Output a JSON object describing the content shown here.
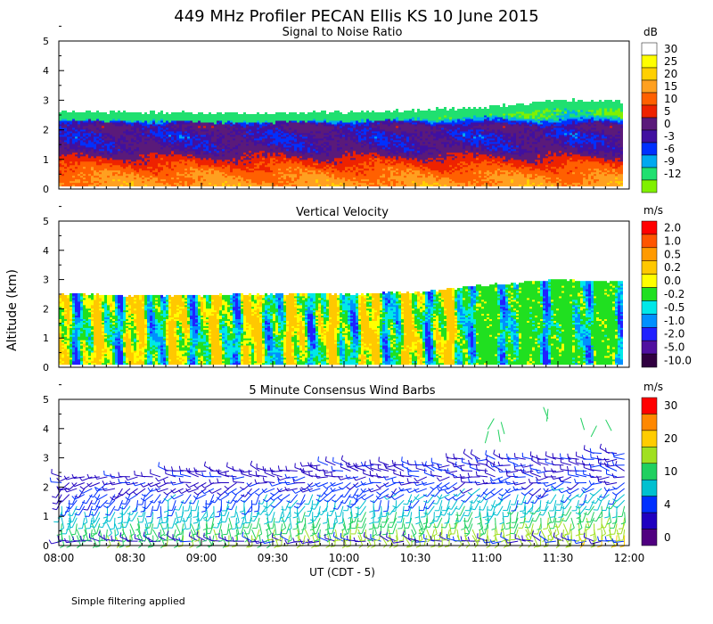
{
  "title": "449 MHz Profiler PECAN Ellis KS 10 June 2015",
  "footer_note": "Simple filtering applied",
  "x_axis": {
    "label": "UT  (CDT - 5)",
    "ticks": [
      "08:00",
      "08:30",
      "09:00",
      "09:30",
      "10:00",
      "10:30",
      "11:00",
      "11:30",
      "12:00"
    ],
    "range_hours": [
      8,
      12
    ]
  },
  "y_axis": {
    "label": "Altitude (km)",
    "ticks": [
      "0",
      "1",
      "2",
      "3",
      "4",
      "5"
    ],
    "range_km": [
      0,
      5
    ]
  },
  "chart_data": [
    {
      "type": "heatmap",
      "title": "Signal to Noise Ratio",
      "unit": "dB",
      "xlim": [
        8,
        12
      ],
      "ylim": [
        0,
        5
      ],
      "colorbar": [
        {
          "label": "30",
          "color": "#ffffff"
        },
        {
          "label": "25",
          "color": "#ffff00"
        },
        {
          "label": "20",
          "color": "#ffd000"
        },
        {
          "label": "15",
          "color": "#ffa020"
        },
        {
          "label": "10",
          "color": "#ff6000"
        },
        {
          "label": "5",
          "color": "#ee2200"
        },
        {
          "label": "0",
          "color": "#5a1a7a"
        },
        {
          "label": "-3",
          "color": "#4010a0"
        },
        {
          "label": "-6",
          "color": "#0030ff"
        },
        {
          "label": "-9",
          "color": "#00a8f0"
        },
        {
          "label": "-12",
          "color": "#20e070"
        }
      ],
      "lowest_color": "#80f000",
      "profile_km": [
        {
          "h": 0.0,
          "db": 18
        },
        {
          "h": 0.5,
          "db": 14
        },
        {
          "h": 0.9,
          "db": 8
        },
        {
          "h": 1.3,
          "db": 0
        },
        {
          "h": 1.8,
          "db": -2
        },
        {
          "h": 2.1,
          "db": 1
        },
        {
          "h": 2.35,
          "db": -8
        },
        {
          "h": 2.5,
          "db": -12
        }
      ],
      "echo_top_km": [
        [
          8.0,
          2.55
        ],
        [
          8.5,
          2.55
        ],
        [
          9.0,
          2.5
        ],
        [
          9.5,
          2.5
        ],
        [
          10.0,
          2.55
        ],
        [
          10.5,
          2.6
        ],
        [
          11.0,
          2.7
        ],
        [
          11.5,
          2.95
        ],
        [
          12.0,
          2.9
        ]
      ]
    },
    {
      "type": "heatmap",
      "title": "Vertical Velocity",
      "unit": "m/s",
      "xlim": [
        8,
        12
      ],
      "ylim": [
        0,
        5
      ],
      "colorbar": [
        {
          "label": "2.0",
          "color": "#ff0000"
        },
        {
          "label": "1.0",
          "color": "#ff5500"
        },
        {
          "label": "0.5",
          "color": "#ff9a00"
        },
        {
          "label": "0.2",
          "color": "#ffc800"
        },
        {
          "label": "0.0",
          "color": "#ffff00"
        },
        {
          "label": "-0.2",
          "color": "#20e020"
        },
        {
          "label": "-0.5",
          "color": "#00e8e8"
        },
        {
          "label": "-1.0",
          "color": "#0090ff"
        },
        {
          "label": "-2.0",
          "color": "#2020ff"
        },
        {
          "label": "-5.0",
          "color": "#5010a0"
        },
        {
          "label": "-10.0",
          "color": "#300040"
        }
      ],
      "echo_top_km": [
        [
          8.0,
          2.45
        ],
        [
          8.5,
          2.4
        ],
        [
          9.0,
          2.4
        ],
        [
          9.5,
          2.45
        ],
        [
          10.0,
          2.45
        ],
        [
          10.5,
          2.5
        ],
        [
          11.0,
          2.75
        ],
        [
          11.5,
          2.95
        ],
        [
          12.0,
          2.85
        ]
      ]
    },
    {
      "type": "scatter",
      "title": "5 Minute Consensus Wind Barbs",
      "unit": "m/s",
      "xlim": [
        8,
        12
      ],
      "ylim": [
        0,
        5
      ],
      "colorbar": [
        {
          "label": "30",
          "color": "#ff0000"
        },
        {
          "label": "",
          "color": "#ff8800"
        },
        {
          "label": "20",
          "color": "#ffcc00"
        },
        {
          "label": "",
          "color": "#a0e020"
        },
        {
          "label": "10",
          "color": "#20d060"
        },
        {
          "label": "",
          "color": "#00c0d0"
        },
        {
          "label": "4",
          "color": "#0030ff"
        },
        {
          "label": "",
          "color": "#2000c0"
        },
        {
          "label": "0",
          "color": "#500080"
        }
      ],
      "wind_profile": [
        {
          "h": 0.2,
          "speed": 14,
          "dir": 170
        },
        {
          "h": 0.6,
          "speed": 11,
          "dir": 175
        },
        {
          "h": 1.0,
          "speed": 8,
          "dir": 185
        },
        {
          "h": 1.5,
          "speed": 5,
          "dir": 200
        },
        {
          "h": 2.0,
          "speed": 3,
          "dir": 240
        },
        {
          "h": 2.5,
          "speed": 2,
          "dir": 280
        }
      ]
    }
  ]
}
